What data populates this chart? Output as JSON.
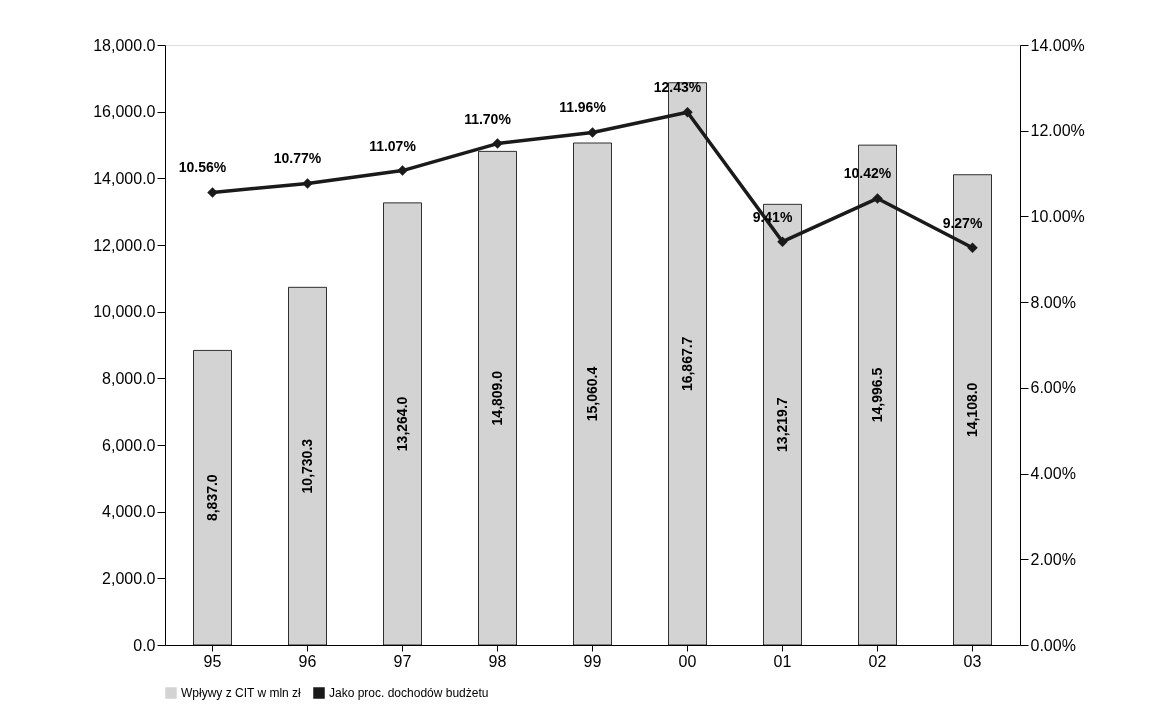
{
  "chart_data": {
    "type": "bar",
    "categories": [
      "95",
      "96",
      "97",
      "98",
      "99",
      "00",
      "01",
      "02",
      "03"
    ],
    "series": [
      {
        "name": "Wpływy z CIT w mln zł",
        "color": "#d3d3d3",
        "values": [
          8837.0,
          10730.3,
          13264.0,
          14809.0,
          15060.4,
          16867.7,
          13219.7,
          14996.5,
          14108.0
        ],
        "value_labels": [
          "8,837.0",
          "10,730.3",
          "13,264.0",
          "14,809.0",
          "15,060.4",
          "16,867.7",
          "13,219.7",
          "14,996.5",
          "14,108.0"
        ]
      },
      {
        "name": "Jako proc. dochodów budżetu",
        "type": "line",
        "axis": "y2",
        "color": "#1a1a1a",
        "marker": "diamond",
        "values": [
          10.56,
          10.77,
          11.07,
          11.7,
          11.96,
          12.43,
          9.41,
          10.42,
          9.27
        ],
        "value_labels": [
          "10.56%",
          "10.77%",
          "11.07%",
          "11.70%",
          "11.96%",
          "12.43%",
          "9.41%",
          "10.42%",
          "9.27%"
        ]
      }
    ],
    "ylim": [
      0,
      18000
    ],
    "yticks": [
      {
        "value": 0,
        "label": "0.0"
      },
      {
        "value": 2000,
        "label": "2,000.0"
      },
      {
        "value": 4000,
        "label": "4,000.0"
      },
      {
        "value": 6000,
        "label": "6,000.0"
      },
      {
        "value": 8000,
        "label": "8,000.0"
      },
      {
        "value": 10000,
        "label": "10,000.0"
      },
      {
        "value": 12000,
        "label": "12,000.0"
      },
      {
        "value": 14000,
        "label": "14,000.0"
      },
      {
        "value": 16000,
        "label": "16,000.0"
      },
      {
        "value": 18000,
        "label": "18,000.0"
      }
    ],
    "y2lim": [
      0,
      14
    ],
    "y2ticks": [
      {
        "value": 0,
        "label": "0.00%"
      },
      {
        "value": 2,
        "label": "2.00%"
      },
      {
        "value": 4,
        "label": "4.00%"
      },
      {
        "value": 6,
        "label": "6.00%"
      },
      {
        "value": 8,
        "label": "8.00%"
      },
      {
        "value": 10,
        "label": "10.00%"
      },
      {
        "value": 12,
        "label": "12.00%"
      },
      {
        "value": 14,
        "label": "14.00%"
      }
    ],
    "grid": false,
    "legend": "bottom"
  }
}
